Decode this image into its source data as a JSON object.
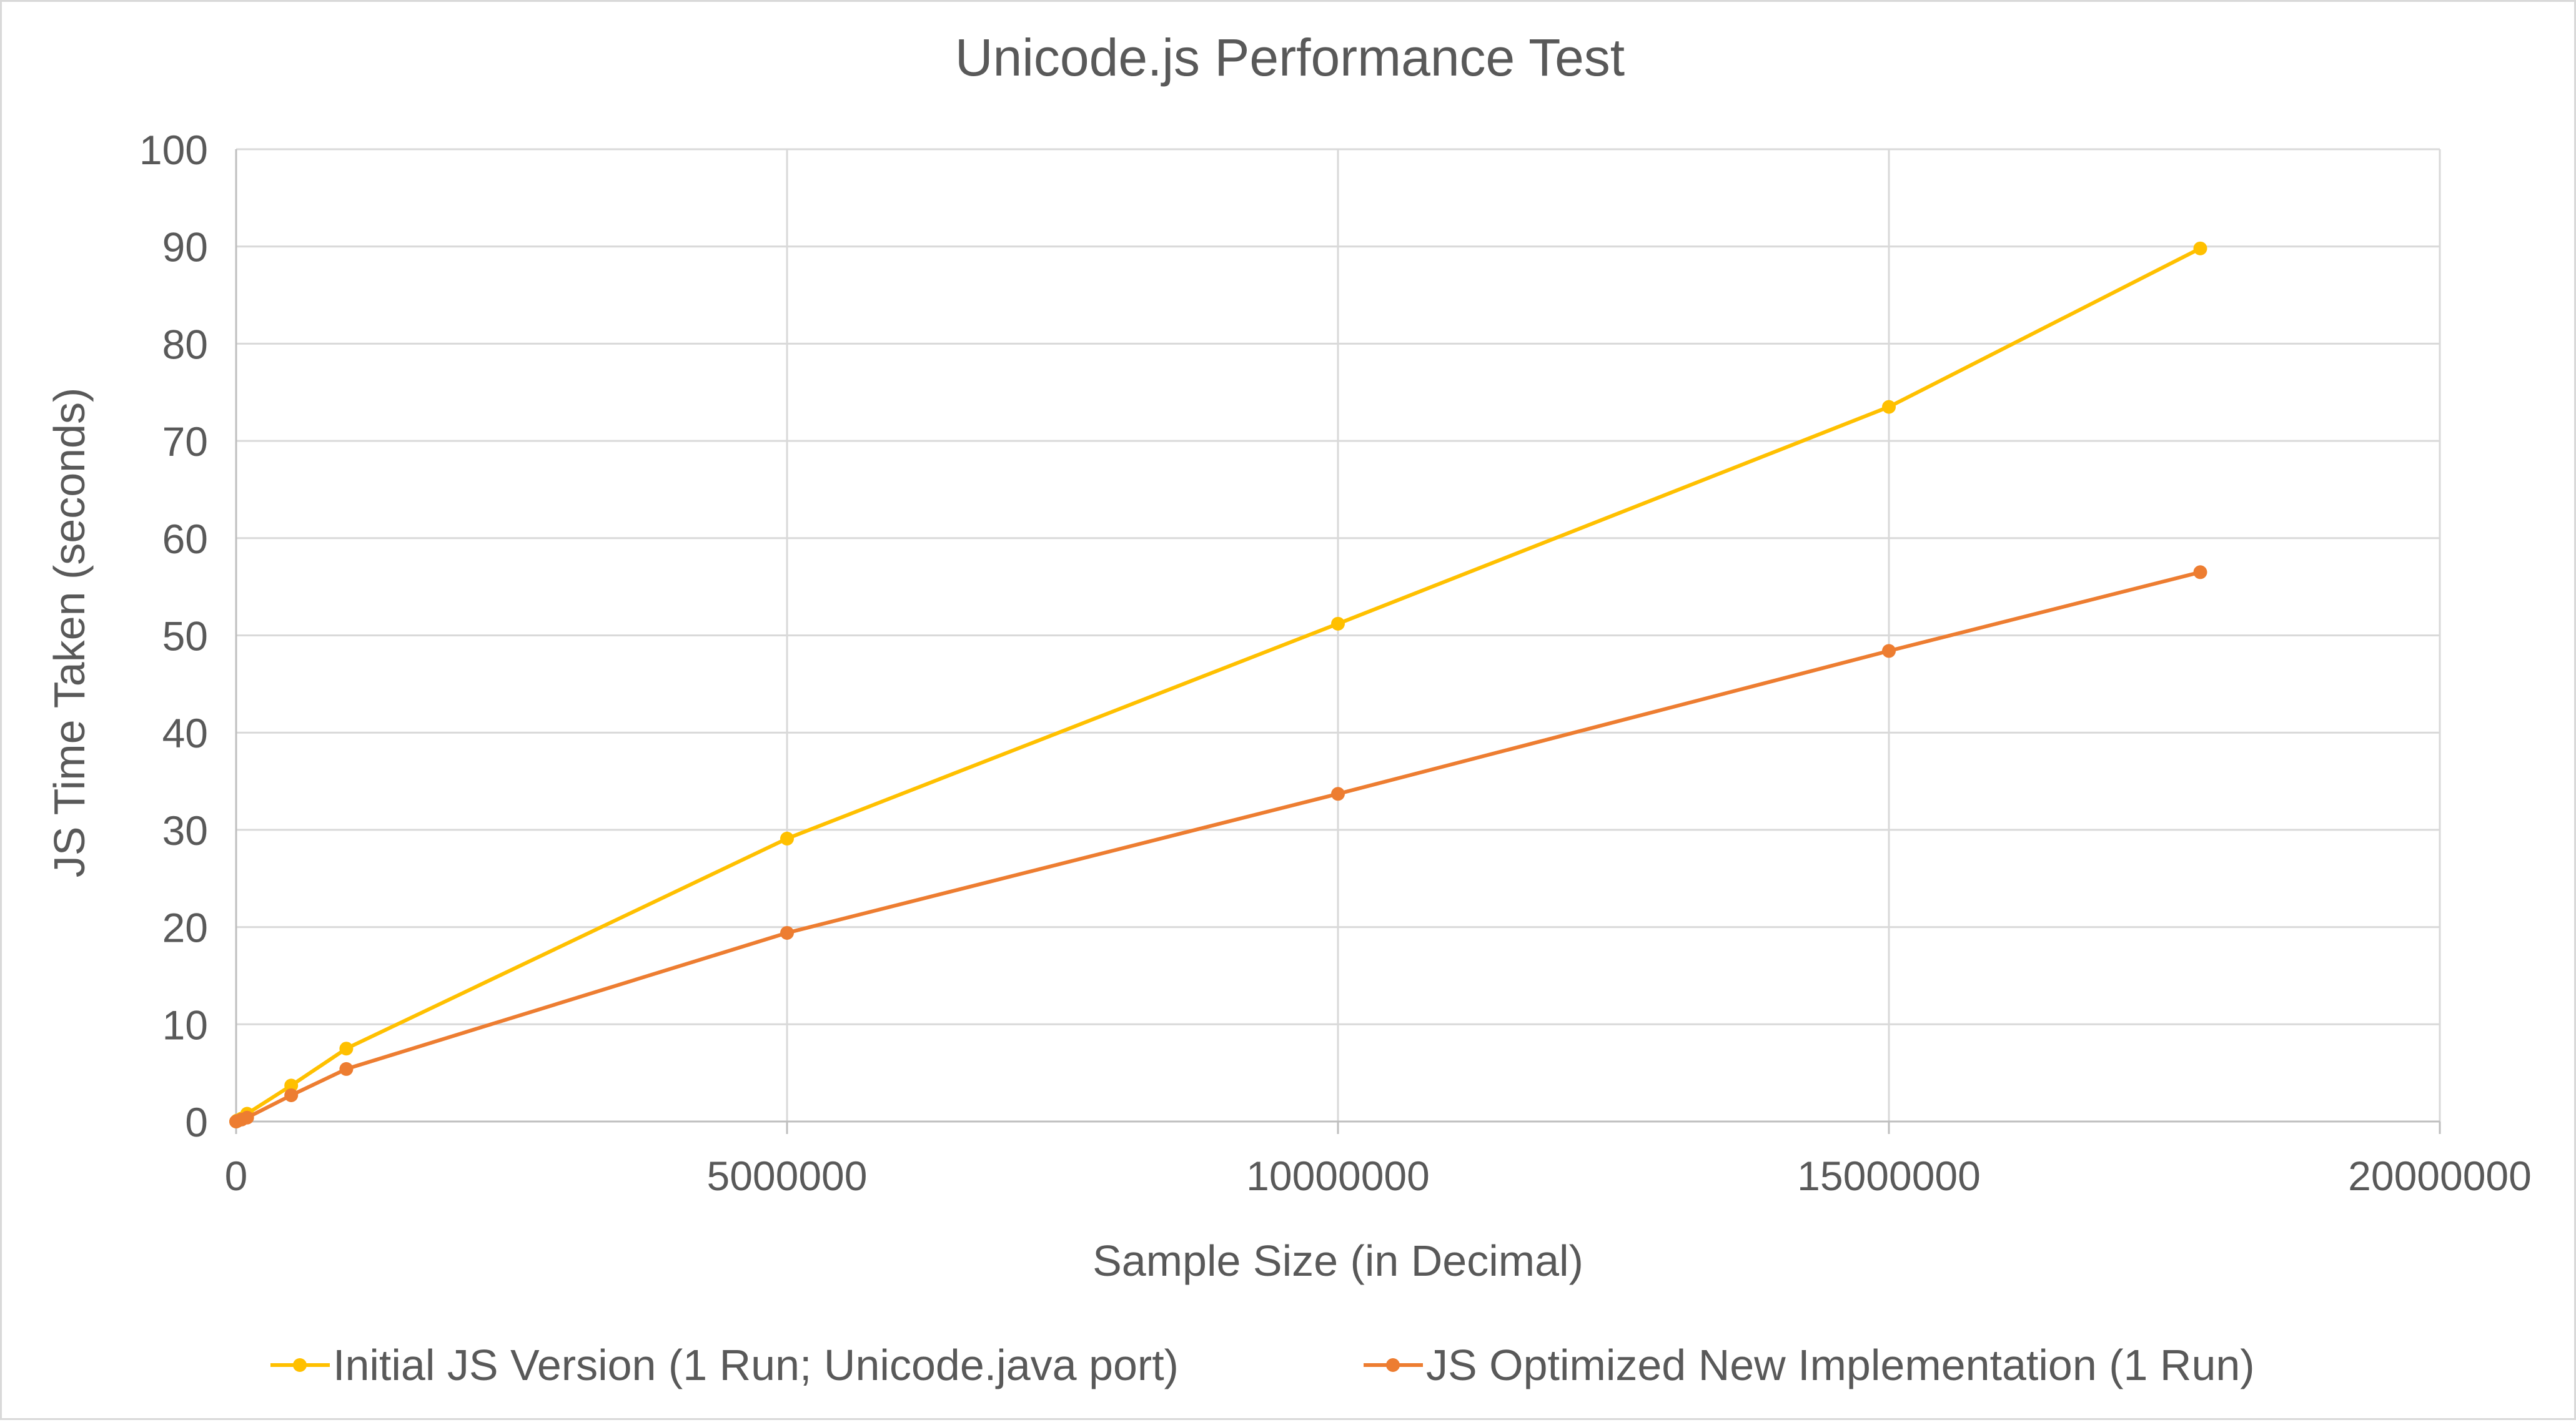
{
  "chart_data": {
    "type": "line",
    "title": "Unicode.js Performance Test",
    "xlabel": "Sample Size (in Decimal)",
    "ylabel": "JS Time Taken (seconds)",
    "xlim": [
      0,
      20000000
    ],
    "ylim": [
      0,
      100
    ],
    "x_ticks": [
      0,
      5000000,
      10000000,
      15000000,
      20000000
    ],
    "y_ticks": [
      0,
      10,
      20,
      30,
      40,
      50,
      60,
      70,
      80,
      90,
      100
    ],
    "grid": true,
    "legend_position": "bottom",
    "series": [
      {
        "name": "Initial JS Version (1 Run; Unicode.java port)",
        "color": "#FFC000",
        "points": [
          [
            0,
            0
          ],
          [
            10000,
            0.1
          ],
          [
            50000,
            0.3
          ],
          [
            100000,
            0.8
          ],
          [
            500000,
            3.7
          ],
          [
            1000000,
            7.5
          ],
          [
            5000000,
            29.1
          ],
          [
            10000000,
            51.2
          ],
          [
            15000000,
            73.5
          ],
          [
            17825792,
            89.8
          ]
        ]
      },
      {
        "name": "JS Optimized New Implementation (1 Run)",
        "color": "#ED7D31",
        "points": [
          [
            0,
            0
          ],
          [
            10000,
            0.05
          ],
          [
            50000,
            0.2
          ],
          [
            100000,
            0.4
          ],
          [
            500000,
            2.7
          ],
          [
            1000000,
            5.4
          ],
          [
            5000000,
            19.4
          ],
          [
            10000000,
            33.7
          ],
          [
            15000000,
            48.4
          ],
          [
            17825792,
            56.5
          ]
        ]
      }
    ]
  }
}
